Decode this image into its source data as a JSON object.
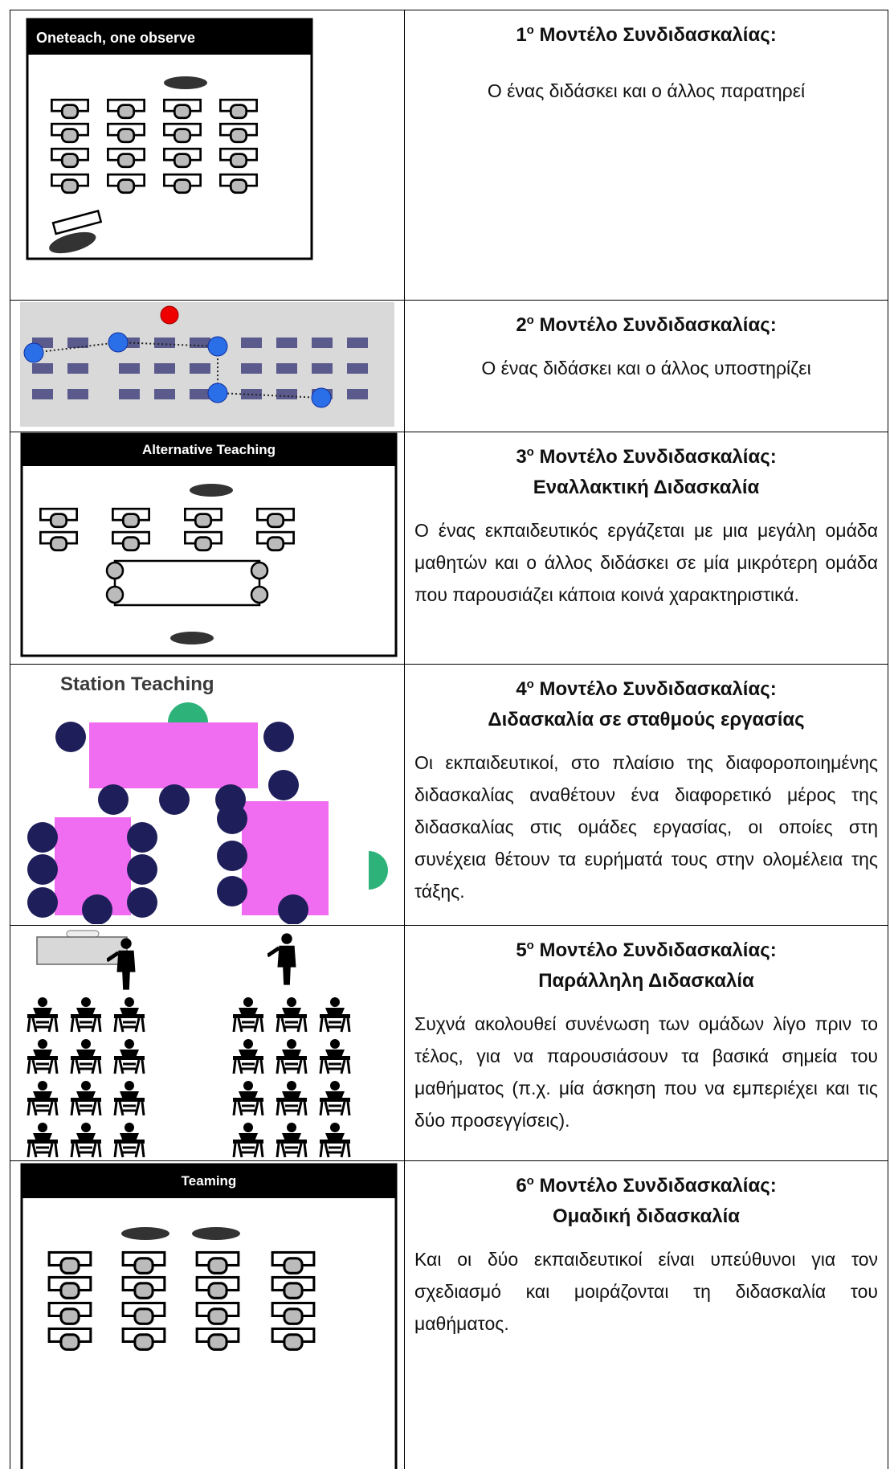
{
  "rows": [
    {
      "image_label": "Oneteach, one observe",
      "number": "1",
      "ordinal_suffix": "ο",
      "heading": "Μοντέλο Συνδιδασκαλίας:",
      "text": "Ο ένας διδάσκει και ο άλλος παρατηρεί"
    },
    {
      "number": "2",
      "ordinal_suffix": "ο",
      "heading": "Μοντέλο Συνδιδασκαλίας:",
      "text": "Ο ένας διδάσκει και ο άλλος υποστηρίζει"
    },
    {
      "image_label": "Alternative Teaching",
      "number": "3",
      "ordinal_suffix": "ο",
      "heading": "Μοντέλο Συνδιδασκαλίας:",
      "subheading": "Εναλλακτική Διδασκαλία",
      "text": "Ο ένας εκπαιδευτικός εργάζεται με μια μεγάλη ομάδα μαθητών και ο άλλος διδάσκει σε μία μικρότερη ομάδα που παρουσιάζει κάποια κοινά χαρακτηριστικά."
    },
    {
      "image_label": "Station Teaching",
      "number": "4",
      "ordinal_suffix": "ο",
      "heading": "Μοντέλο Συνδιδασκαλίας:",
      "subheading": "Διδασκαλία σε σταθμούς εργασίας",
      "text": "Οι εκπαιδευτικοί, στο πλαίσιο της διαφοροποιημένης διδασκαλίας αναθέτουν ένα διαφορετικό μέρος της διδασκαλίας στις ομάδες εργασίας, οι οποίες στη συνέχεια θέτουν τα ευρήματά τους στην ολομέλεια της τάξης."
    },
    {
      "number": "5",
      "ordinal_suffix": "ο",
      "heading": "Μοντέλο Συνδιδασκαλίας:",
      "subheading": "Παράλληλη Διδασκαλία",
      "text": "Συχνά ακολουθεί συνένωση των ομάδων λίγο πριν το τέλος, για να παρουσιάσουν τα βασικά σημεία του μαθήματος (π.χ. μία άσκηση που να εμπεριέχει και τις δύο προσεγγίσεις)."
    },
    {
      "image_label": "Teaming",
      "number": "6",
      "ordinal_suffix": "ο",
      "heading": "Μοντέλο Συνδιδασκαλίας:",
      "subheading": "Ομαδική διδασκαλία",
      "text": "Και οι δύο εκπαιδευτικοί είναι υπεύθυνοι για τον σχεδιασμό και μοιράζονται τη διδασκαλία του μαθήματος."
    }
  ]
}
